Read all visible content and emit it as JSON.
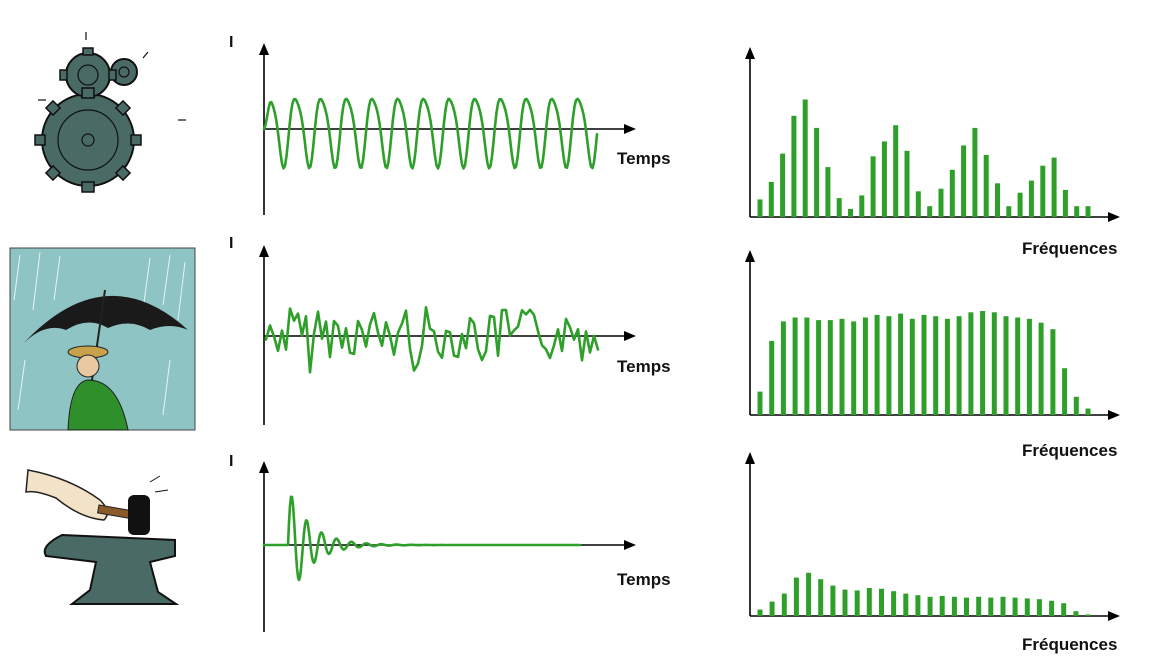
{
  "axis_labels": {
    "intensity": "I",
    "time": "Temps",
    "frequency": "Fréquences"
  },
  "colors": {
    "signal": "#2ea02a",
    "axis": "#000000",
    "background": "#ffffff"
  },
  "rows": [
    {
      "illustration": "gears-icon",
      "signal_kind": "periodic",
      "spectrum": [
        0.13,
        0.26,
        0.47,
        0.75,
        0.87,
        0.66,
        0.37,
        0.14,
        0.06,
        0.16,
        0.45,
        0.56,
        0.68,
        0.49,
        0.19,
        0.08,
        0.21,
        0.35,
        0.53,
        0.66,
        0.46,
        0.25,
        0.08,
        0.18,
        0.27,
        0.38,
        0.44,
        0.2,
        0.08,
        0.08
      ]
    },
    {
      "illustration": "rain-umbrella-icon",
      "signal_kind": "random",
      "spectrum": [
        0.18,
        0.57,
        0.72,
        0.75,
        0.75,
        0.73,
        0.73,
        0.74,
        0.72,
        0.75,
        0.77,
        0.76,
        0.78,
        0.74,
        0.77,
        0.76,
        0.74,
        0.76,
        0.79,
        0.8,
        0.79,
        0.76,
        0.75,
        0.74,
        0.71,
        0.66,
        0.36,
        0.14,
        0.05
      ]
    },
    {
      "illustration": "hammer-anvil-icon",
      "signal_kind": "impulse",
      "spectrum": [
        0.08,
        0.18,
        0.28,
        0.48,
        0.54,
        0.46,
        0.38,
        0.33,
        0.32,
        0.35,
        0.34,
        0.31,
        0.28,
        0.26,
        0.24,
        0.25,
        0.24,
        0.23,
        0.24,
        0.23,
        0.24,
        0.23,
        0.22,
        0.21,
        0.19,
        0.16,
        0.06,
        0.02
      ]
    }
  ]
}
